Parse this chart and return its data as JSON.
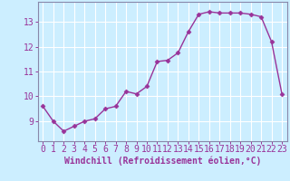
{
  "x": [
    0,
    1,
    2,
    3,
    4,
    5,
    6,
    7,
    8,
    9,
    10,
    11,
    12,
    13,
    14,
    15,
    16,
    17,
    18,
    19,
    20,
    21,
    22,
    23
  ],
  "y": [
    9.6,
    9.0,
    8.6,
    8.8,
    9.0,
    9.1,
    9.5,
    9.6,
    10.2,
    10.1,
    10.4,
    11.4,
    11.45,
    11.75,
    12.6,
    13.3,
    13.4,
    13.35,
    13.35,
    13.35,
    13.3,
    13.2,
    12.2,
    10.1
  ],
  "line_color": "#993399",
  "marker": "D",
  "marker_size": 2.5,
  "linewidth": 1.0,
  "xlabel": "Windchill (Refroidissement éolien,°C)",
  "xlabel_fontsize": 7,
  "xticks": [
    0,
    1,
    2,
    3,
    4,
    5,
    6,
    7,
    8,
    9,
    10,
    11,
    12,
    13,
    14,
    15,
    16,
    17,
    18,
    19,
    20,
    21,
    22,
    23
  ],
  "yticks": [
    9,
    10,
    11,
    12,
    13
  ],
  "ylim": [
    8.2,
    13.8
  ],
  "xlim": [
    -0.5,
    23.5
  ],
  "bg_color": "#cceeff",
  "grid_color": "#ffffff",
  "tick_label_fontsize": 7,
  "spine_color": "#8888aa"
}
